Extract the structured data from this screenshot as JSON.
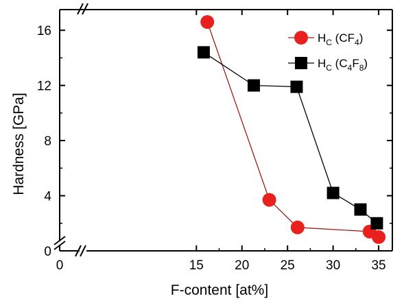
{
  "chart_data": {
    "type": "line",
    "xlabel": "F-content [at%]",
    "ylabel": "Hardness [GPa]",
    "xlim": [
      0,
      36.5
    ],
    "ylim": [
      0,
      17.5
    ],
    "axis_break": "both",
    "xticks": [
      0,
      15,
      20,
      25,
      30,
      35
    ],
    "yticks": [
      0,
      4,
      8,
      12,
      16
    ],
    "grid": false,
    "legend_position": "top-right",
    "series": [
      {
        "name": "CF4",
        "legend_main": "H",
        "legend_sub": "C",
        "legend_pre": " (CF",
        "legend_sub2": "4",
        "legend_post": ")",
        "marker": "circle",
        "marker_color": "#e8211e",
        "line_color": "#9b1f14",
        "x": [
          16.2,
          23.0,
          26.1,
          34.0,
          35.0
        ],
        "y": [
          16.6,
          3.7,
          1.7,
          1.4,
          1.0
        ]
      },
      {
        "name": "C4F8",
        "legend_main": "H",
        "legend_sub": "C",
        "legend_pre": " (C",
        "legend_sub2": "4",
        "legend_mid": "F",
        "legend_sub3": "8",
        "legend_post": ")",
        "marker": "square",
        "marker_color": "#000000",
        "line_color": "#000000",
        "x": [
          15.8,
          21.3,
          26.0,
          30.0,
          33.0,
          34.8
        ],
        "y": [
          14.4,
          12.0,
          11.9,
          4.2,
          3.0,
          2.0
        ]
      }
    ]
  }
}
